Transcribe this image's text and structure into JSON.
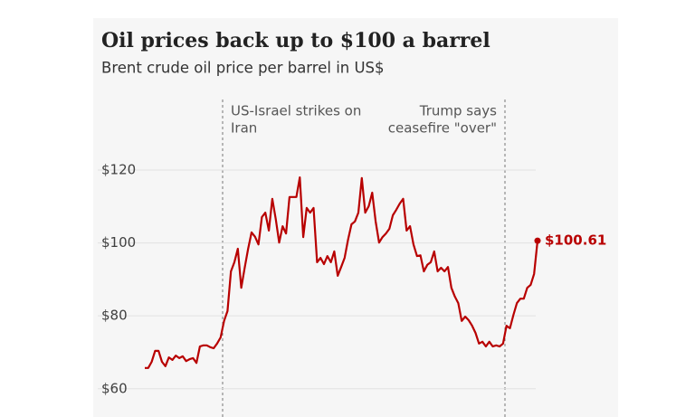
{
  "chart_data": {
    "type": "line",
    "title": "Oil prices back up to $100 a barrel",
    "subtitle": "Brent crude oil price per barrel in US$",
    "series": [
      {
        "name": "Brent crude",
        "color": "#b80000",
        "values": [
          65.7,
          65.7,
          67.4,
          70.4,
          70.4,
          67.4,
          66.2,
          68.6,
          67.9,
          69.1,
          68.4,
          68.9,
          67.6,
          68.1,
          68.4,
          67.1,
          71.6,
          71.9,
          71.9,
          71.4,
          71.1,
          72.4,
          74.1,
          78.6,
          81.3,
          92.2,
          94.7,
          98.4,
          87.7,
          93.2,
          98.4,
          102.9,
          101.7,
          99.6,
          107.1,
          108.3,
          103.4,
          112.1,
          106.6,
          100.1,
          104.6,
          102.6,
          112.6,
          112.6,
          112.6,
          118.0,
          101.6,
          109.6,
          108.3,
          109.6,
          94.7,
          95.9,
          94.2,
          96.4,
          94.7,
          97.7,
          91.0,
          93.4,
          95.9,
          100.9,
          105.1,
          105.9,
          108.3,
          117.8,
          108.3,
          110.1,
          113.8,
          105.9,
          100.1,
          101.6,
          102.6,
          103.9,
          107.6,
          109.1,
          110.8,
          112.1,
          103.4,
          104.6,
          99.6,
          96.4,
          96.6,
          92.2,
          94.0,
          94.7,
          97.7,
          92.2,
          93.2,
          92.2,
          93.4,
          87.7,
          85.3,
          83.5,
          78.6,
          79.8,
          78.8,
          77.3,
          75.3,
          72.4,
          72.9,
          71.6,
          72.9,
          71.6,
          71.9,
          71.6,
          72.4,
          77.3,
          76.6,
          80.3,
          83.5,
          84.7,
          84.7,
          87.7,
          88.5,
          91.5,
          100.61
        ],
        "last_value_label": "$100.61"
      }
    ],
    "annotations": [
      {
        "lines": [
          "US-Israel strikes on",
          "Iran"
        ]
      },
      {
        "lines": [
          "Trump says",
          "ceasefire \"over\""
        ]
      }
    ],
    "ylim": [
      52.5,
      130
    ],
    "yticks": [
      {
        "value": 60,
        "label": "$60"
      },
      {
        "value": 80,
        "label": "$80"
      },
      {
        "value": 100,
        "label": "$100"
      },
      {
        "value": 120,
        "label": "$120"
      }
    ],
    "grid": true
  }
}
